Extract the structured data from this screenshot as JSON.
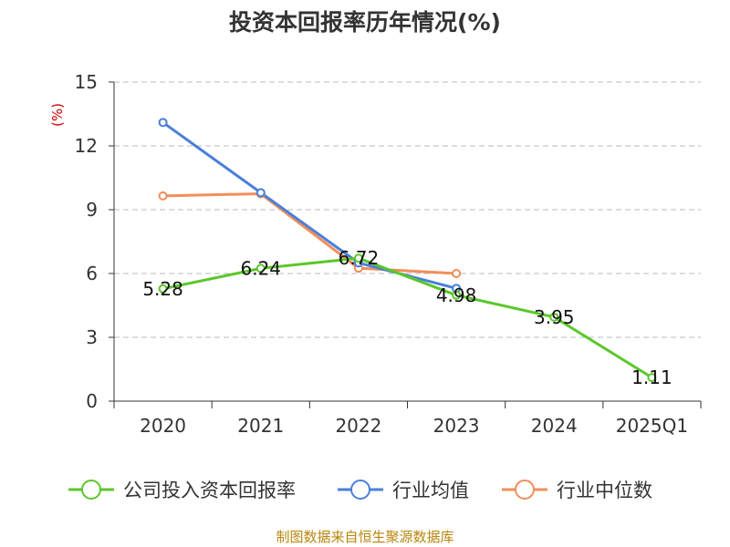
{
  "chart_data": {
    "type": "line",
    "title": "投资本回报率历年情况(%)",
    "ylabel": "(%)",
    "categories": [
      "2020",
      "2021",
      "2022",
      "2023",
      "2024",
      "2025Q1"
    ],
    "ylim": [
      0,
      15
    ],
    "yticks": [
      0,
      3,
      6,
      9,
      12,
      15
    ],
    "grid": true,
    "legend_position": "bottom",
    "series": [
      {
        "name": "公司投入资本回报率",
        "color": "#5bc72a",
        "values": [
          5.28,
          6.24,
          6.72,
          4.98,
          3.95,
          1.11
        ],
        "labels": [
          "5.28",
          "6.24",
          "6.72",
          "4.98",
          "3.95",
          "1.11"
        ]
      },
      {
        "name": "行业均值",
        "color": "#4a7fd9",
        "values": [
          13.1,
          9.8,
          6.5,
          5.3,
          null,
          null
        ]
      },
      {
        "name": "行业中位数",
        "color": "#f28e5a",
        "values": [
          9.65,
          9.75,
          6.25,
          6.0,
          null,
          null
        ]
      }
    ]
  },
  "source": "制图数据来自恒生聚源数据库"
}
